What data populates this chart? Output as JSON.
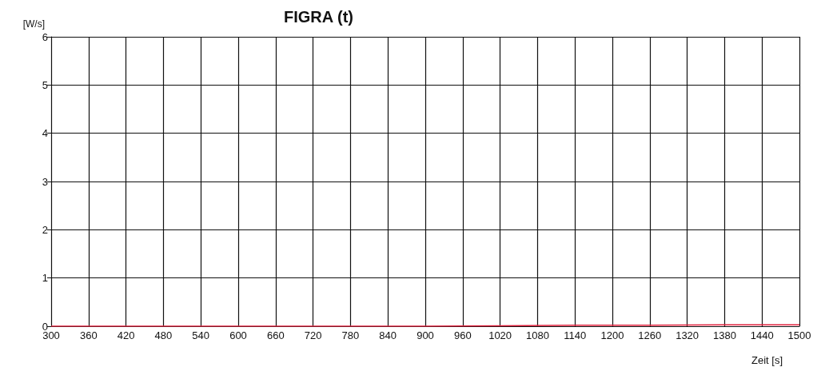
{
  "chart_data": {
    "type": "line",
    "title": "FIGRA (t)",
    "xlabel": "Zeit [s]",
    "ylabel": "[W/s]",
    "x": [
      300,
      420,
      540,
      660,
      780,
      900,
      1020,
      1140,
      1260,
      1380,
      1500
    ],
    "series": [
      {
        "color": "#e0203c",
        "values": [
          0,
          0,
          0,
          0,
          0,
          0,
          0.01,
          0.02,
          0.02,
          0.03,
          0.03
        ]
      }
    ],
    "xlim": [
      300,
      1500
    ],
    "xticks": [
      300,
      360,
      420,
      480,
      540,
      600,
      660,
      720,
      780,
      840,
      900,
      960,
      1020,
      1080,
      1140,
      1200,
      1260,
      1320,
      1380,
      1440,
      1500
    ],
    "ylim": [
      0,
      6
    ],
    "yticks": [
      0,
      1,
      2,
      3,
      4,
      5,
      6
    ],
    "grid": true,
    "marker": "none",
    "line_style": "solid"
  }
}
